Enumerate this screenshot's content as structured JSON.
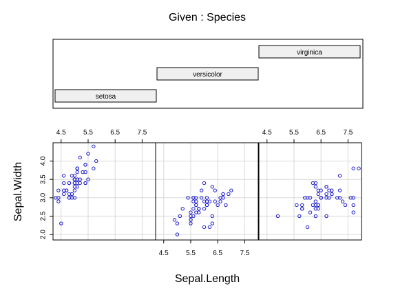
{
  "chart_data": {
    "type": "scatter",
    "title": "Given : Species",
    "xlabel": "Sepal.Length",
    "ylabel": "Sepal.Width",
    "xlim": [
      4.2,
      8.0
    ],
    "ylim": [
      1.85,
      4.5
    ],
    "x_ticks": [
      4.5,
      5.5,
      6.5,
      7.5
    ],
    "x_tick_labels": [
      "4.5",
      "5.5",
      "6.5",
      "7.5"
    ],
    "y_ticks": [
      2.0,
      2.5,
      3.0,
      3.5,
      4.0
    ],
    "y_tick_labels": [
      "2.0",
      "2.5",
      "3.0",
      "3.5",
      "4.0"
    ],
    "grid": true,
    "panels": [
      {
        "name": "setosa",
        "x": [
          5.1,
          4.9,
          4.7,
          4.6,
          5.0,
          5.4,
          4.6,
          5.0,
          4.4,
          4.9,
          5.4,
          4.8,
          4.8,
          4.3,
          5.8,
          5.7,
          5.4,
          5.1,
          5.7,
          5.1,
          5.4,
          5.1,
          4.6,
          5.1,
          4.8,
          5.0,
          5.0,
          5.2,
          5.2,
          4.7,
          4.8,
          5.4,
          5.2,
          5.5,
          4.9,
          5.0,
          5.5,
          4.9,
          4.4,
          5.1,
          5.0,
          4.5,
          4.4,
          5.0,
          5.1,
          4.8,
          5.1,
          4.6,
          5.3,
          5.0
        ],
        "y": [
          3.5,
          3.0,
          3.2,
          3.1,
          3.6,
          3.9,
          3.4,
          3.4,
          2.9,
          3.1,
          3.7,
          3.4,
          3.0,
          3.0,
          4.0,
          4.4,
          3.9,
          3.5,
          3.8,
          3.8,
          3.4,
          3.7,
          3.6,
          3.3,
          3.4,
          3.0,
          3.4,
          3.5,
          3.4,
          3.2,
          3.1,
          3.4,
          4.1,
          4.2,
          3.1,
          3.2,
          3.5,
          3.6,
          3.0,
          3.4,
          3.5,
          2.3,
          3.2,
          3.5,
          3.8,
          3.0,
          3.8,
          3.2,
          3.7,
          3.3
        ]
      },
      {
        "name": "versicolor",
        "x": [
          7.0,
          6.4,
          6.9,
          5.5,
          6.5,
          5.7,
          6.3,
          4.9,
          6.6,
          5.2,
          5.0,
          5.9,
          6.0,
          6.1,
          5.6,
          6.7,
          5.6,
          5.8,
          6.2,
          5.6,
          5.9,
          6.1,
          6.3,
          6.1,
          6.4,
          6.6,
          6.8,
          6.7,
          6.0,
          5.7,
          5.5,
          5.5,
          5.8,
          6.0,
          5.4,
          6.0,
          6.7,
          6.3,
          5.6,
          5.5,
          5.5,
          6.1,
          5.8,
          5.0,
          5.6,
          5.7,
          5.7,
          6.2,
          5.1,
          5.7
        ],
        "y": [
          3.2,
          3.2,
          3.1,
          2.3,
          2.8,
          2.8,
          3.3,
          2.4,
          2.9,
          2.7,
          2.0,
          3.0,
          2.2,
          2.9,
          2.9,
          3.1,
          3.0,
          2.7,
          2.2,
          2.5,
          3.2,
          2.8,
          2.5,
          2.8,
          2.9,
          3.0,
          2.8,
          3.0,
          2.9,
          2.6,
          2.4,
          2.4,
          2.7,
          2.7,
          3.0,
          3.4,
          3.1,
          2.3,
          3.0,
          2.5,
          2.6,
          3.0,
          2.6,
          2.3,
          2.7,
          3.0,
          2.9,
          2.9,
          2.5,
          2.8
        ]
      },
      {
        "name": "virginica",
        "x": [
          6.3,
          5.8,
          7.1,
          6.3,
          6.5,
          7.6,
          4.9,
          7.3,
          6.7,
          7.2,
          6.5,
          6.4,
          6.8,
          5.7,
          5.8,
          6.4,
          6.5,
          7.7,
          7.7,
          6.0,
          6.9,
          5.6,
          7.7,
          6.3,
          6.7,
          7.2,
          6.2,
          6.1,
          6.4,
          7.2,
          7.4,
          7.9,
          6.4,
          6.3,
          6.1,
          7.7,
          6.3,
          6.4,
          6.0,
          6.9,
          6.7,
          6.9,
          5.8,
          6.8,
          6.7,
          6.7,
          6.3,
          6.5,
          6.2,
          5.9
        ],
        "y": [
          3.3,
          2.7,
          3.0,
          2.9,
          3.0,
          3.0,
          2.5,
          2.9,
          2.5,
          3.6,
          3.2,
          2.7,
          3.0,
          2.5,
          2.8,
          3.2,
          3.0,
          3.8,
          2.6,
          2.2,
          3.2,
          2.8,
          2.8,
          2.7,
          3.3,
          3.2,
          2.8,
          3.0,
          2.8,
          3.0,
          2.8,
          3.8,
          2.8,
          2.8,
          2.6,
          3.0,
          3.4,
          3.1,
          3.0,
          3.1,
          3.1,
          3.1,
          2.7,
          3.2,
          3.3,
          3.0,
          2.5,
          3.0,
          3.4,
          3.0
        ]
      }
    ]
  }
}
